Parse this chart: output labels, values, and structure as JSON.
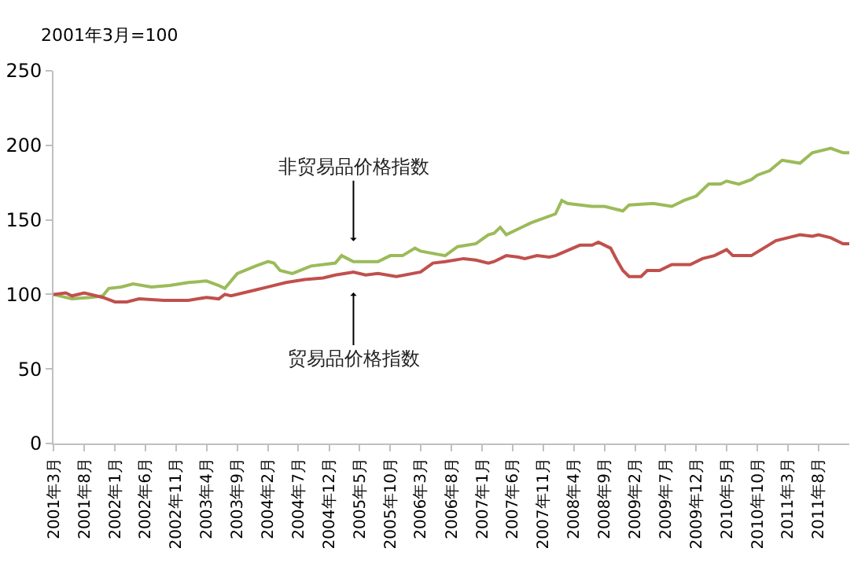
{
  "chart_data": {
    "type": "line",
    "ylabel": "2001年3月=100",
    "ylim": [
      0,
      250
    ],
    "yticks": [
      0,
      50,
      100,
      150,
      200,
      250
    ],
    "xlim": [
      "2001-03",
      "2012-01"
    ],
    "xticks": [
      {
        "value": "2001-03",
        "label": "2001年3月"
      },
      {
        "value": "2001-08",
        "label": "2001年8月"
      },
      {
        "value": "2002-01",
        "label": "2002年1月"
      },
      {
        "value": "2002-06",
        "label": "2002年6月"
      },
      {
        "value": "2002-11",
        "label": "2002年11月"
      },
      {
        "value": "2003-04",
        "label": "2003年4月"
      },
      {
        "value": "2003-09",
        "label": "2003年9月"
      },
      {
        "value": "2004-02",
        "label": "2004年2月"
      },
      {
        "value": "2004-07",
        "label": "2004年7月"
      },
      {
        "value": "2004-12",
        "label": "2004年12月"
      },
      {
        "value": "2005-05",
        "label": "2005年5月"
      },
      {
        "value": "2005-10",
        "label": "2005年10月"
      },
      {
        "value": "2006-03",
        "label": "2006年3月"
      },
      {
        "value": "2006-08",
        "label": "2006年8月"
      },
      {
        "value": "2007-01",
        "label": "2007年1月"
      },
      {
        "value": "2007-06",
        "label": "2007年6月"
      },
      {
        "value": "2007-11",
        "label": "2007年11月"
      },
      {
        "value": "2008-04",
        "label": "2008年4月"
      },
      {
        "value": "2008-09",
        "label": "2008年9月"
      },
      {
        "value": "2009-02",
        "label": "2009年2月"
      },
      {
        "value": "2009-07",
        "label": "2009年7月"
      },
      {
        "value": "2009-12",
        "label": "2009年12月"
      },
      {
        "value": "2010-05",
        "label": "2010年5月"
      },
      {
        "value": "2010-10",
        "label": "2010年10月"
      },
      {
        "value": "2011-03",
        "label": "2011年3月"
      },
      {
        "value": "2011-08",
        "label": "2011年8月"
      }
    ],
    "grid": false,
    "marker": "none",
    "line_style": "solid",
    "series": [
      {
        "color": "#9bbb59",
        "x": [
          "2001-03",
          "2001-06",
          "2001-09",
          "2001-11",
          "2001-12",
          "2002-02",
          "2002-04",
          "2002-07",
          "2002-10",
          "2003-01",
          "2003-04",
          "2003-06",
          "2003-07",
          "2003-09",
          "2003-12",
          "2004-02",
          "2004-03",
          "2004-04",
          "2004-06",
          "2004-09",
          "2005-01",
          "2005-02",
          "2005-04",
          "2005-08",
          "2005-10",
          "2005-12",
          "2006-02",
          "2006-03",
          "2006-07",
          "2006-09",
          "2006-12",
          "2007-02",
          "2007-03",
          "2007-04",
          "2007-05",
          "2007-07",
          "2007-09",
          "2008-01",
          "2008-02",
          "2008-03",
          "2008-07",
          "2008-09",
          "2008-12",
          "2009-01",
          "2009-05",
          "2009-08",
          "2009-10",
          "2009-12",
          "2010-02",
          "2010-04",
          "2010-05",
          "2010-07",
          "2010-09",
          "2010-10",
          "2010-12",
          "2011-02",
          "2011-05",
          "2011-07",
          "2011-10",
          "2011-12",
          "2012-01"
        ],
        "values": [
          100,
          97,
          98,
          99,
          104,
          105,
          107,
          105,
          106,
          108,
          109,
          106,
          104,
          114,
          119,
          122,
          121,
          116,
          114,
          119,
          121,
          126,
          122,
          122,
          126,
          126,
          131,
          129,
          126,
          132,
          134,
          140,
          141,
          145,
          140,
          144,
          148,
          154,
          163,
          161,
          159,
          159,
          156,
          160,
          161,
          159,
          163,
          166,
          174,
          174,
          176,
          174,
          177,
          180,
          183,
          190,
          188,
          195,
          198,
          195,
          195
        ]
      },
      {
        "color": "#c0504d",
        "x": [
          "2001-03",
          "2001-05",
          "2001-06",
          "2001-08",
          "2001-11",
          "2002-01",
          "2002-03",
          "2002-05",
          "2002-09",
          "2003-01",
          "2003-04",
          "2003-06",
          "2003-07",
          "2003-08",
          "2003-12",
          "2004-02",
          "2004-05",
          "2004-08",
          "2004-11",
          "2005-01",
          "2005-04",
          "2005-06",
          "2005-08",
          "2005-11",
          "2006-03",
          "2006-05",
          "2006-07",
          "2006-10",
          "2006-12",
          "2007-02",
          "2007-03",
          "2007-05",
          "2007-07",
          "2007-08",
          "2007-10",
          "2007-12",
          "2008-01",
          "2008-05",
          "2008-07",
          "2008-08",
          "2008-10",
          "2008-11",
          "2008-12",
          "2009-01",
          "2009-03",
          "2009-04",
          "2009-06",
          "2009-08",
          "2009-11",
          "2010-01",
          "2010-03",
          "2010-05",
          "2010-06",
          "2010-09",
          "2011-01",
          "2011-03",
          "2011-05",
          "2011-07",
          "2011-08",
          "2011-10",
          "2011-12",
          "2012-01"
        ],
        "values": [
          100,
          101,
          99,
          101,
          98,
          95,
          95,
          97,
          96,
          96,
          98,
          97,
          100,
          99,
          103,
          105,
          108,
          110,
          111,
          113,
          115,
          113,
          114,
          112,
          115,
          121,
          122,
          124,
          123,
          121,
          122,
          126,
          125,
          124,
          126,
          125,
          126,
          133,
          133,
          135,
          131,
          123,
          116,
          112,
          112,
          116,
          116,
          120,
          120,
          124,
          126,
          130,
          126,
          126,
          136,
          138,
          140,
          139,
          140,
          138,
          134,
          134
        ]
      }
    ],
    "annotations": [
      {
        "text": "非贸易品价格指数",
        "x": "2005-04",
        "y": 122
      },
      {
        "text": "贸易品价格指数",
        "x": "2005-04",
        "y": 115
      }
    ]
  }
}
